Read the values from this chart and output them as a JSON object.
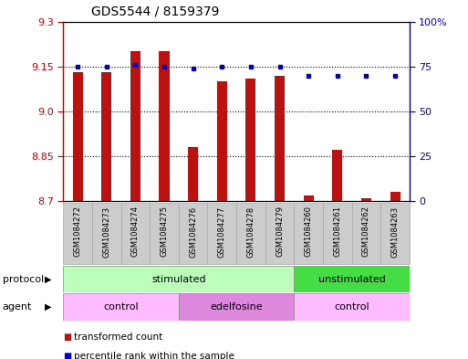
{
  "title": "GDS5544 / 8159379",
  "samples": [
    "GSM1084272",
    "GSM1084273",
    "GSM1084274",
    "GSM1084275",
    "GSM1084276",
    "GSM1084277",
    "GSM1084278",
    "GSM1084279",
    "GSM1084260",
    "GSM1084261",
    "GSM1084262",
    "GSM1084263"
  ],
  "transformed_count": [
    9.13,
    9.13,
    9.2,
    9.2,
    8.88,
    9.1,
    9.11,
    9.12,
    8.72,
    8.87,
    8.71,
    8.73
  ],
  "percentile_rank": [
    75,
    75,
    76,
    75,
    74,
    75,
    75,
    75,
    70,
    70,
    70,
    70
  ],
  "ylim_left": [
    8.7,
    9.3
  ],
  "ylim_right": [
    0,
    100
  ],
  "yticks_left": [
    8.7,
    8.85,
    9.0,
    9.15,
    9.3
  ],
  "yticks_right": [
    0,
    25,
    50,
    75,
    100
  ],
  "bar_color": "#bb1111",
  "dot_color": "#0000cc",
  "bar_width": 0.35,
  "protocol_groups": [
    {
      "label": "stimulated",
      "start": 0,
      "end": 8,
      "color": "#bbffbb"
    },
    {
      "label": "unstimulated",
      "start": 8,
      "end": 12,
      "color": "#44dd44"
    }
  ],
  "agent_groups": [
    {
      "label": "control",
      "start": 0,
      "end": 4,
      "color": "#ffbbff"
    },
    {
      "label": "edelfosine",
      "start": 4,
      "end": 8,
      "color": "#dd88dd"
    },
    {
      "label": "control",
      "start": 8,
      "end": 12,
      "color": "#ffbbff"
    }
  ],
  "legend_items": [
    {
      "label": "transformed count",
      "color": "#bb1111"
    },
    {
      "label": "percentile rank within the sample",
      "color": "#0000cc"
    }
  ],
  "protocol_label": "protocol",
  "agent_label": "agent",
  "grid_color": "#000000",
  "background_color": "#ffffff",
  "plot_bg_color": "#ffffff",
  "tick_label_color_left": "#cc0000",
  "tick_label_color_right": "#0000cc",
  "xtick_bg_color": "#cccccc",
  "xtick_border_color": "#aaaaaa"
}
